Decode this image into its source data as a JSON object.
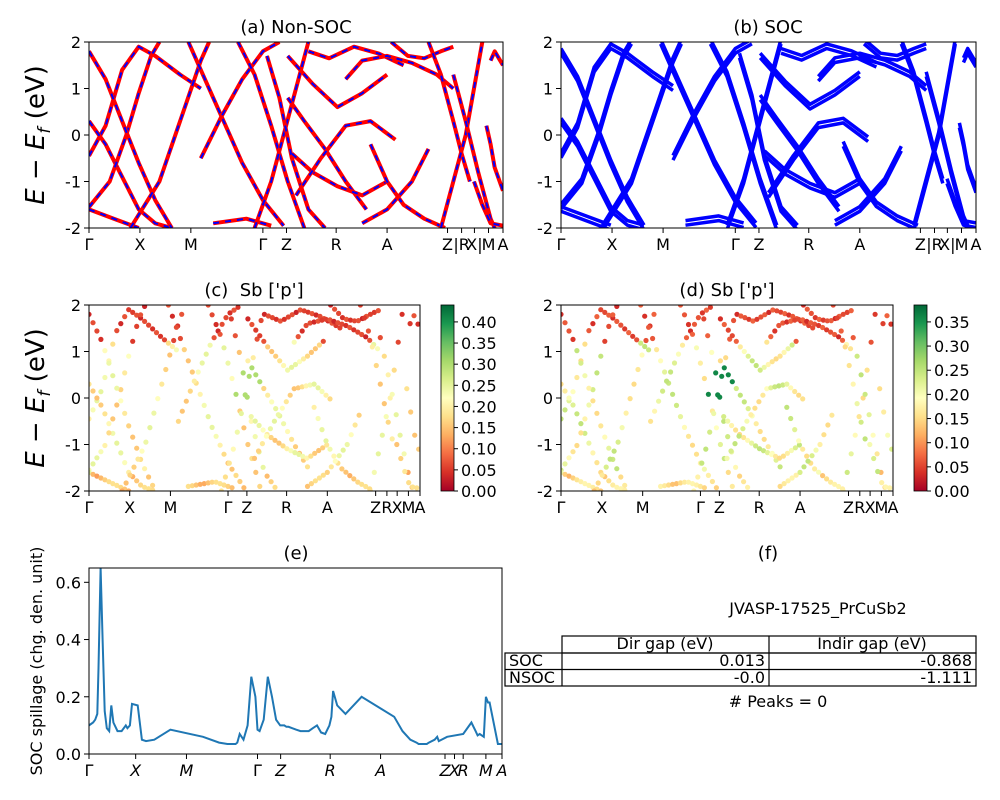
{
  "chart_data": [
    {
      "id": "a",
      "type": "line",
      "title": "(a) Non-SOC",
      "ylabel": "E − E_f (eV)",
      "ylim": [
        -2,
        2
      ],
      "yticks": [
        -2,
        -1,
        0,
        1,
        2
      ],
      "kpath": [
        "Γ",
        "X",
        "M",
        "Γ",
        "Z",
        "R",
        "A",
        "Z",
        "|R",
        "X|",
        "M",
        "A"
      ],
      "series": [
        {
          "color": "#ff0000",
          "style": "solid"
        },
        {
          "color": "#0000ff",
          "style": "dashed"
        }
      ],
      "bands": [
        [
          [
            0,
            -0.45
          ],
          [
            4,
            0.2
          ],
          [
            8,
            1.4
          ],
          [
            12,
            1.9
          ],
          [
            16,
            1.7
          ],
          [
            22,
            1.3
          ],
          [
            27,
            1.0
          ]
        ],
        [
          [
            0,
            0.3
          ],
          [
            4,
            -0.2
          ],
          [
            8,
            -0.9
          ],
          [
            12,
            -1.6
          ],
          [
            16,
            -1.9
          ],
          [
            20,
            -2.0
          ]
        ],
        [
          [
            0,
            -1.55
          ],
          [
            5,
            -1.0
          ],
          [
            9,
            0.0
          ],
          [
            12,
            0.9
          ],
          [
            15,
            1.7
          ],
          [
            17,
            2.0
          ]
        ],
        [
          [
            0,
            1.8
          ],
          [
            4,
            1.2
          ],
          [
            8,
            0.3
          ],
          [
            12,
            -0.6
          ],
          [
            16,
            -1.4
          ],
          [
            20,
            -2.0
          ]
        ],
        [
          [
            0,
            -1.6
          ],
          [
            6,
            -1.8
          ],
          [
            12,
            -2.0
          ]
        ],
        [
          [
            10,
            -2.0
          ],
          [
            17,
            -1.0
          ],
          [
            22,
            0.3
          ],
          [
            27,
            1.6
          ],
          [
            29,
            2.0
          ]
        ],
        [
          [
            24,
            2.0
          ],
          [
            27,
            1.4
          ],
          [
            32,
            0.4
          ],
          [
            37,
            -0.6
          ],
          [
            42,
            -1.4
          ],
          [
            47,
            -1.95
          ]
        ],
        [
          [
            30,
            -1.9
          ],
          [
            38,
            -1.8
          ],
          [
            44,
            -1.95
          ]
        ],
        [
          [
            27,
            -0.5
          ],
          [
            32,
            0.4
          ],
          [
            37,
            1.2
          ],
          [
            42,
            1.8
          ],
          [
            46,
            2.0
          ]
        ],
        [
          [
            36,
            2.0
          ],
          [
            40,
            1.3
          ],
          [
            44,
            0.2
          ],
          [
            48,
            -1.0
          ],
          [
            52,
            -2.0
          ]
        ],
        [
          [
            40,
            -2.0
          ],
          [
            44,
            -1.0
          ],
          [
            47,
            0.0
          ],
          [
            50,
            1.0
          ],
          [
            53,
            2.0
          ]
        ],
        [
          [
            43,
            1.7
          ],
          [
            46,
            0.8
          ],
          [
            49,
            -0.5
          ],
          [
            53,
            -1.6
          ],
          [
            57,
            -2.0
          ]
        ],
        [
          [
            48,
            0.8
          ],
          [
            52,
            0.3
          ],
          [
            57,
            -0.3
          ],
          [
            62,
            -1.0
          ],
          [
            67,
            -1.6
          ]
        ],
        [
          [
            49,
            -0.4
          ],
          [
            54,
            -0.8
          ],
          [
            60,
            -1.1
          ],
          [
            66,
            -1.3
          ],
          [
            72,
            -1.0
          ]
        ],
        [
          [
            50,
            -1.3
          ],
          [
            56,
            -0.5
          ],
          [
            62,
            0.2
          ],
          [
            68,
            0.3
          ],
          [
            74,
            -0.1
          ]
        ],
        [
          [
            48,
            1.7
          ],
          [
            54,
            1.1
          ],
          [
            60,
            0.6
          ],
          [
            66,
            0.9
          ],
          [
            72,
            1.3
          ]
        ],
        [
          [
            53,
            1.8
          ],
          [
            58,
            1.65
          ],
          [
            64,
            1.9
          ],
          [
            70,
            1.75
          ],
          [
            76,
            1.5
          ]
        ],
        [
          [
            62,
            1.2
          ],
          [
            66,
            1.6
          ],
          [
            72,
            1.7
          ],
          [
            78,
            1.55
          ],
          [
            84,
            1.3
          ],
          [
            88,
            1.0
          ]
        ],
        [
          [
            73,
            2.0
          ],
          [
            77,
            1.7
          ],
          [
            81,
            1.65
          ],
          [
            85,
            1.8
          ],
          [
            88,
            1.9
          ]
        ],
        [
          [
            68,
            -0.2
          ],
          [
            72,
            -1.0
          ],
          [
            76,
            -1.5
          ],
          [
            81,
            -1.8
          ],
          [
            86,
            -2.0
          ]
        ],
        [
          [
            66,
            -1.9
          ],
          [
            72,
            -1.6
          ],
          [
            78,
            -1.0
          ],
          [
            82,
            -0.3
          ]
        ],
        [
          [
            82,
            2.0
          ],
          [
            85,
            1.3
          ],
          [
            88,
            0.3
          ],
          [
            90,
            -0.4
          ],
          [
            92,
            -1.0
          ]
        ],
        [
          [
            85,
            -2.0
          ],
          [
            88,
            -1.0
          ],
          [
            91,
            0.0
          ],
          [
            93,
            1.0
          ],
          [
            95,
            2.0
          ]
        ],
        [
          [
            88,
            1.3
          ],
          [
            91,
            0.3
          ],
          [
            94,
            -0.8
          ],
          [
            97,
            -1.8
          ],
          [
            98,
            -2.0
          ]
        ],
        [
          [
            93,
            -1.0
          ],
          [
            95,
            -1.5
          ],
          [
            97,
            -1.9
          ],
          [
            100,
            -1.95
          ]
        ],
        [
          [
            96,
            0.2
          ],
          [
            97,
            -0.2
          ],
          [
            98,
            -0.7
          ],
          [
            100,
            -1.2
          ]
        ],
        [
          [
            97,
            1.6
          ],
          [
            98,
            1.8
          ],
          [
            100,
            1.5
          ]
        ]
      ]
    },
    {
      "id": "b",
      "type": "line",
      "title": "(b) SOC",
      "ylim": [
        -2,
        2
      ],
      "yticks": [
        -2,
        -1,
        0,
        1,
        2
      ],
      "kpath": [
        "Γ",
        "X",
        "M",
        "Γ",
        "Z",
        "R",
        "A",
        "Z",
        "|R",
        "X|",
        "M",
        "A"
      ],
      "series": [
        {
          "color": "#0000ff",
          "style": "solid"
        }
      ]
    },
    {
      "id": "c",
      "type": "scatter",
      "title": "(c)  Sb ['p']",
      "ylabel": "E − E_f (eV)",
      "ylim": [
        -2,
        2
      ],
      "yticks": [
        -2,
        -1,
        0,
        1,
        2
      ],
      "kpath": [
        "Γ",
        "X",
        "M",
        "Γ",
        "Z",
        "R",
        "A",
        "Z",
        "R",
        "X",
        "M",
        "A"
      ],
      "colorbar": {
        "min": 0.0,
        "max": 0.44,
        "ticks": [
          "0.00",
          "0.05",
          "0.10",
          "0.15",
          "0.20",
          "0.25",
          "0.30",
          "0.35",
          "0.40"
        ]
      }
    },
    {
      "id": "d",
      "type": "scatter",
      "title": "(d) Sb ['p']",
      "ylim": [
        -2,
        2
      ],
      "yticks": [
        -2,
        -1,
        0,
        1,
        2
      ],
      "kpath": [
        "Γ",
        "X",
        "M",
        "Γ",
        "Z",
        "R",
        "A",
        "Z",
        "R",
        "X",
        "M",
        "A"
      ],
      "colorbar": {
        "min": 0.0,
        "max": 0.385,
        "ticks": [
          "0.00",
          "0.05",
          "0.10",
          "0.15",
          "0.20",
          "0.25",
          "0.30",
          "0.35"
        ]
      }
    },
    {
      "id": "e",
      "type": "line",
      "title": "(e)",
      "ylabel": "SOC spillage (chg. den. unit)",
      "ylim": [
        0,
        0.65
      ],
      "yticks": [
        "0.0",
        "0.2",
        "0.4",
        "0.6"
      ],
      "kpath": [
        "Γ",
        "X",
        "M",
        "Γ",
        "Z",
        "R",
        "A",
        "Z",
        "X",
        "R",
        "M",
        "A"
      ],
      "color": "#1f77b4",
      "x": [
        0,
        1,
        1.5,
        2,
        2.3,
        2.8,
        3.3,
        3.8,
        4.3,
        4.9,
        5.4,
        5.9,
        6.9,
        7.9,
        8.9,
        9.3,
        9.9,
        10.4,
        11.8,
        12.8,
        13.8,
        15.8,
        19.7,
        27.6,
        31.5,
        33.5,
        34.5,
        35.5,
        35.9,
        36.5,
        37.4,
        38.4,
        39.3,
        40.3,
        40.8,
        41.3,
        42.3,
        43.3,
        44.3,
        45.3,
        46.3,
        47.3,
        47.8,
        48.3,
        49.2,
        50.2,
        51.2,
        53.2,
        54.2,
        55.2,
        56.2,
        57.2,
        57.7,
        58.2,
        58.7,
        59.1,
        60.1,
        62.1,
        66.0,
        73.9,
        75.9,
        77.8,
        79.3,
        79.8,
        80.8,
        81.8,
        82.3,
        83.7,
        84.3,
        84.7,
        86.7,
        90.6,
        92.6,
        93.6,
        94.1,
        94.6,
        95.6,
        96.1,
        96.6,
        97.0,
        99.0,
        100
      ],
      "y": [
        0.1,
        0.11,
        0.12,
        0.14,
        0.3,
        0.65,
        0.4,
        0.15,
        0.09,
        0.08,
        0.17,
        0.11,
        0.08,
        0.08,
        0.1,
        0.09,
        0.1,
        0.175,
        0.17,
        0.05,
        0.045,
        0.05,
        0.085,
        0.06,
        0.04,
        0.035,
        0.035,
        0.035,
        0.04,
        0.07,
        0.05,
        0.1,
        0.27,
        0.2,
        0.085,
        0.08,
        0.12,
        0.27,
        0.2,
        0.12,
        0.1,
        0.1,
        0.095,
        0.095,
        0.09,
        0.085,
        0.08,
        0.08,
        0.09,
        0.1,
        0.075,
        0.07,
        0.085,
        0.1,
        0.13,
        0.22,
        0.17,
        0.14,
        0.2,
        0.13,
        0.08,
        0.05,
        0.04,
        0.035,
        0.035,
        0.035,
        0.04,
        0.05,
        0.06,
        0.045,
        0.06,
        0.07,
        0.11,
        0.08,
        0.065,
        0.07,
        0.06,
        0.2,
        0.18,
        0.18,
        0.035,
        0.035
      ]
    }
  ],
  "table": {
    "title": "(f)",
    "caption": "JVASP-17525_PrCuSb2",
    "headers": [
      "",
      "Dir gap (eV)",
      "Indir gap (eV)"
    ],
    "rows": [
      {
        "label": "SOC",
        "dir": "0.013",
        "indir": "-0.868"
      },
      {
        "label": "NSOC",
        "dir": "-0.0",
        "indir": "-1.111"
      }
    ],
    "footer": "# Peaks = 0"
  }
}
